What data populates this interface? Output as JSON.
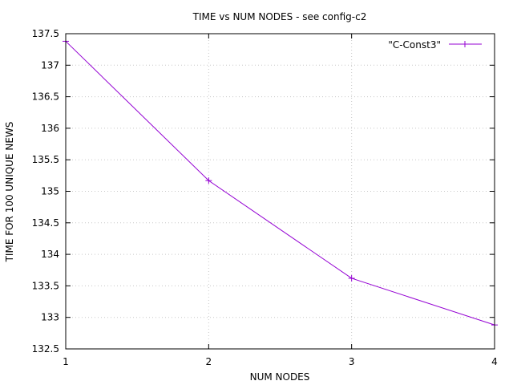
{
  "chart_data": {
    "type": "line",
    "title": "TIME vs NUM NODES - see config-c2",
    "xlabel": "NUM NODES",
    "ylabel": "TIME FOR 100 UNIQUE NEWS",
    "xlim": [
      1,
      4
    ],
    "ylim": [
      132.5,
      137.5
    ],
    "xticks": [
      1,
      2,
      3,
      4
    ],
    "xtick_labels": [
      "1",
      "2",
      "3",
      "4"
    ],
    "yticks": [
      132.5,
      133,
      133.5,
      134,
      134.5,
      135,
      135.5,
      136,
      136.5,
      137,
      137.5
    ],
    "ytick_labels": [
      "132.5",
      "133",
      "133.5",
      "134",
      "134.5",
      "135",
      "135.5",
      "136",
      "136.5",
      "137",
      "137.5"
    ],
    "grid": true,
    "legend_position": "top-right",
    "series": [
      {
        "name": "\"C-Const3\"",
        "color": "#9400d3",
        "marker": "plus",
        "x": [
          1,
          2,
          3,
          4
        ],
        "values": [
          137.38,
          135.17,
          133.62,
          132.88
        ]
      }
    ]
  }
}
